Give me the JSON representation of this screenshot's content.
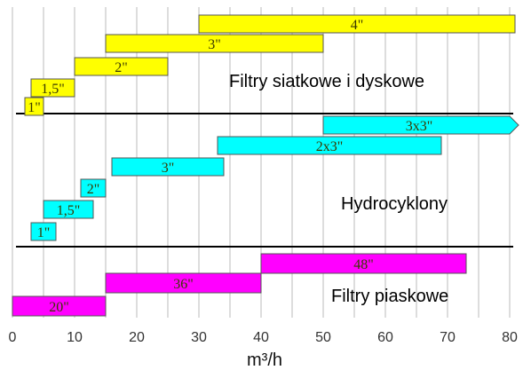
{
  "chart_data": {
    "type": "bar",
    "xlabel": "m³/h",
    "xlim": [
      0,
      82
    ],
    "x_ticks": [
      0,
      10,
      20,
      30,
      40,
      50,
      60,
      70,
      80
    ],
    "grid": true,
    "groups": [
      {
        "name": "Filtry siatkowe i dyskowe",
        "color": "#ffff00",
        "bars": [
          {
            "label": "1\"",
            "start": 2,
            "end": 5
          },
          {
            "label": "1,5\"",
            "start": 3,
            "end": 10
          },
          {
            "label": "2\"",
            "start": 10,
            "end": 25
          },
          {
            "label": "3\"",
            "start": 15,
            "end": 50
          },
          {
            "label": "4\"",
            "start": 30,
            "end": 82
          }
        ]
      },
      {
        "name": "Hydrocyklony",
        "color": "#00ffff",
        "bars": [
          {
            "label": "1\"",
            "start": 3,
            "end": 7
          },
          {
            "label": "1,5\"",
            "start": 5,
            "end": 13
          },
          {
            "label": "2\"",
            "start": 11,
            "end": 15
          },
          {
            "label": "3\"",
            "start": 16,
            "end": 34
          },
          {
            "label": "2x3\"",
            "start": 33,
            "end": 69
          },
          {
            "label": "3x3\"",
            "start": 50,
            "end": 82
          }
        ]
      },
      {
        "name": "Filtry piaskowe",
        "color": "#ff00ff",
        "bars": [
          {
            "label": "20\"",
            "start": 0,
            "end": 15
          },
          {
            "label": "36\"",
            "start": 15,
            "end": 40
          },
          {
            "label": "48\"",
            "start": 40,
            "end": 73
          }
        ]
      }
    ]
  }
}
